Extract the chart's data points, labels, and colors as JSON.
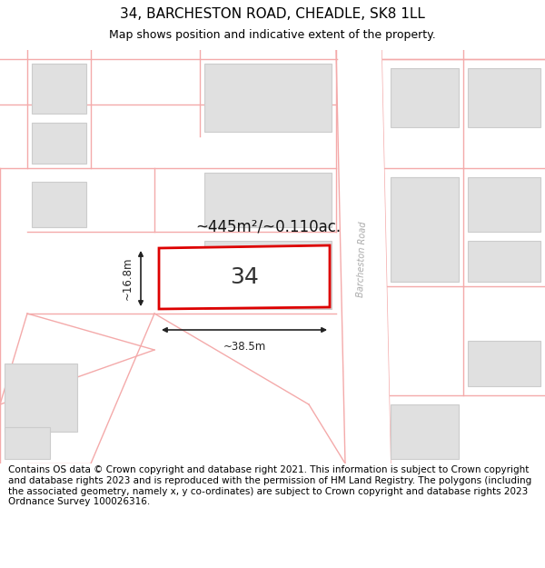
{
  "title": "34, BARCHESTON ROAD, CHEADLE, SK8 1LL",
  "subtitle": "Map shows position and indicative extent of the property.",
  "footer": "Contains OS data © Crown copyright and database right 2021. This information is subject to Crown copyright and database rights 2023 and is reproduced with the permission of HM Land Registry. The polygons (including the associated geometry, namely x, y co-ordinates) are subject to Crown copyright and database rights 2023 Ordnance Survey 100026316.",
  "bg_color": "#ffffff",
  "map_bg_color": "#ffffff",
  "building_fill": "#e0e0e0",
  "building_edge_color": "#cccccc",
  "plot_line_color": "#f4aaaa",
  "highlight_fill": "#ffffff",
  "highlight_edge_color": "#dd0000",
  "area_text": "~445m²/~0.110ac.",
  "label_34": "34",
  "dim_width": "~38.5m",
  "dim_height": "~16.8m",
  "road_label": "Barcheston Road",
  "road_fill": "#ffffff",
  "title_fontsize": 11,
  "subtitle_fontsize": 9,
  "footer_fontsize": 7.5,
  "annotation_color": "#222222"
}
